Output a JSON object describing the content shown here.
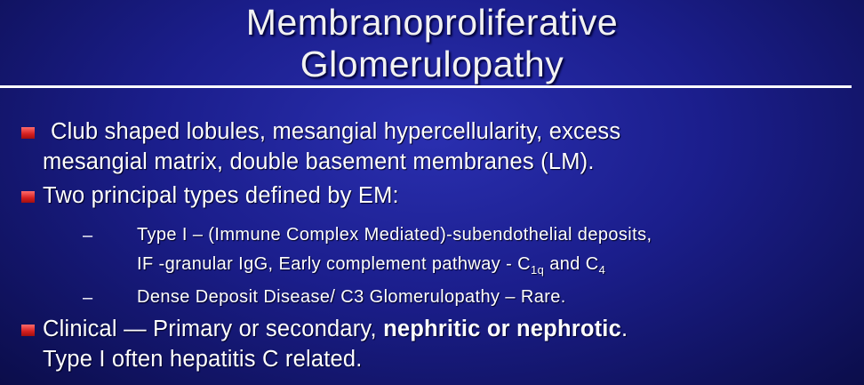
{
  "title": {
    "line1": "Membranoproliferative",
    "line2": "Glomerulopathy"
  },
  "bullets": {
    "b1": {
      "line1": "Club shaped lobules, mesangial hypercellularity, excess",
      "line2": "mesangial matrix, double basement membranes (LM)."
    },
    "b2": {
      "text": "Two principal types defined by EM:"
    },
    "b3": {
      "line1_normal": "Clinical — Primary or secondary, ",
      "line1_bold": "nephritic or nephrotic",
      "line1_end": ".",
      "line2": "Type I often  hepatitis C related."
    }
  },
  "subbullets": {
    "dash": "–",
    "s1": {
      "line1": "Type I – (Immune Complex Mediated)-subendothelial deposits,",
      "line2_pre": "IF -granular IgG, Early complement pathway - C",
      "sub1": "1q",
      "mid": " and C",
      "sub2": "4"
    },
    "s2": {
      "text": "Dense Deposit Disease/ C3 Glomerulopathy – Rare."
    }
  },
  "colors": {
    "background": "#1b1e8c",
    "bullet": "#d41f1f",
    "text": "#ffffff"
  }
}
